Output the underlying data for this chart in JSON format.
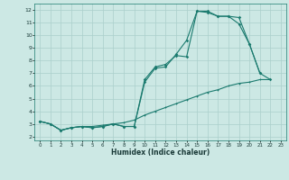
{
  "xlabel": "Humidex (Indice chaleur)",
  "bg_color": "#cce8e4",
  "line_color": "#1a7a6e",
  "grid_color": "#aacfcb",
  "xlim": [
    -0.5,
    23.5
  ],
  "ylim": [
    1.7,
    12.5
  ],
  "xticks": [
    0,
    1,
    2,
    3,
    4,
    5,
    6,
    7,
    8,
    9,
    10,
    11,
    12,
    13,
    14,
    15,
    16,
    17,
    18,
    19,
    20,
    21,
    22,
    23
  ],
  "yticks": [
    2,
    3,
    4,
    5,
    6,
    7,
    8,
    9,
    10,
    11,
    12
  ],
  "line1_x": [
    0,
    1,
    2,
    3,
    4,
    5,
    6,
    7,
    8,
    9,
    10,
    11,
    12,
    13,
    14,
    15,
    16,
    17,
    18,
    19,
    20,
    21,
    22
  ],
  "line1_y": [
    3.2,
    3.0,
    2.5,
    2.7,
    2.8,
    2.7,
    2.8,
    3.0,
    2.8,
    2.8,
    6.5,
    7.5,
    7.7,
    8.4,
    8.3,
    11.9,
    11.8,
    11.5,
    11.5,
    10.9,
    9.3,
    7.0,
    6.5
  ],
  "line2_x": [
    0,
    1,
    2,
    3,
    4,
    5,
    6,
    7,
    8,
    9,
    10,
    11,
    12,
    13,
    14,
    15,
    16,
    17,
    18,
    19,
    20,
    21
  ],
  "line2_y": [
    3.2,
    3.0,
    2.5,
    2.7,
    2.8,
    2.7,
    2.8,
    3.0,
    2.8,
    2.8,
    6.3,
    7.4,
    7.5,
    8.5,
    9.6,
    11.9,
    11.9,
    11.5,
    11.5,
    11.4,
    9.3,
    7.0
  ],
  "line3_x": [
    0,
    1,
    2,
    3,
    4,
    5,
    6,
    7,
    8,
    9,
    10,
    11,
    12,
    13,
    14,
    15,
    16,
    17,
    18,
    19,
    20,
    21,
    22
  ],
  "line3_y": [
    3.2,
    3.0,
    2.5,
    2.7,
    2.8,
    2.8,
    2.9,
    3.0,
    3.1,
    3.3,
    3.7,
    4.0,
    4.3,
    4.6,
    4.9,
    5.2,
    5.5,
    5.7,
    6.0,
    6.2,
    6.3,
    6.5,
    6.5
  ]
}
